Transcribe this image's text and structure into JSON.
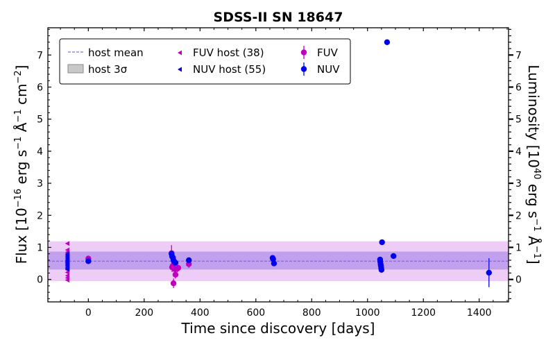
{
  "chart_data": {
    "type": "scatter",
    "title": "SDSS-II SN 18647",
    "xlabel": "Time since discovery [days]",
    "ylabel": {
      "base": "Flux [10",
      "exp1": "−16",
      "mid": " erg s",
      "exp2": "−1",
      "mid2": " Å",
      "exp3": "−1",
      "mid3": " cm",
      "exp4": "−2",
      "end": "]"
    },
    "ylabel_right": {
      "base": "Luminosity [10",
      "exp1": "40",
      "mid": " erg s",
      "exp2": "−1",
      "mid2": " Å",
      "exp3": "−1",
      "end": "]"
    },
    "xlim": [
      -145,
      1505
    ],
    "ylim": [
      -0.7,
      7.85
    ],
    "xticks": [
      0,
      200,
      400,
      600,
      800,
      1000,
      1200,
      1400
    ],
    "yticks": [
      0,
      1,
      2,
      3,
      4,
      5,
      6,
      7
    ],
    "yticks_right": [
      0,
      1,
      2,
      3,
      4,
      5,
      6,
      7
    ],
    "host": {
      "mean": 0.57,
      "nuv_band": [
        0.31,
        0.87
      ],
      "fuv_band": [
        -0.05,
        1.19
      ],
      "line_color": "#8c6bd8",
      "nuv_band_color": "#7050e0",
      "fuv_band_color": "#d68ee8"
    },
    "colors": {
      "fuv": "#c000c0",
      "nuv": "#0000ee"
    },
    "legend": {
      "position": "top-left",
      "entries": [
        {
          "label": "host mean",
          "kind": "dashed"
        },
        {
          "label": "host 3σ",
          "kind": "patch"
        },
        {
          "label": "FUV host (38)",
          "kind": "fuv-host"
        },
        {
          "label": "NUV host (55)",
          "kind": "nuv-host"
        },
        {
          "label": "FUV",
          "kind": "fuv"
        },
        {
          "label": "NUV",
          "kind": "nuv"
        }
      ]
    },
    "series": [
      {
        "name": "FUV host (38)",
        "marker": "triangle-left",
        "color": "#c000c0",
        "x": -75,
        "y": [
          1.12,
          0.92,
          0.85,
          0.78,
          0.72,
          0.66,
          0.6,
          0.55,
          0.5,
          0.44,
          0.38,
          0.3,
          0.22,
          0.12,
          0.05,
          -0.02
        ]
      },
      {
        "name": "NUV host (55)",
        "marker": "triangle-left",
        "color": "#0000ee",
        "x": -75,
        "y": [
          0.8,
          0.75,
          0.7,
          0.66,
          0.62,
          0.58,
          0.55,
          0.52,
          0.48,
          0.45,
          0.42,
          0.38,
          0.35,
          0.32
        ]
      },
      {
        "name": "FUV",
        "marker": "circle",
        "color": "#c000c0",
        "points": [
          {
            "x": 0,
            "y": 0.65,
            "err": 0.08
          },
          {
            "x": 298,
            "y": 0.82,
            "err": 0.25
          },
          {
            "x": 300,
            "y": 0.38,
            "err": 0.15
          },
          {
            "x": 302,
            "y": 0.42,
            "err": 0.12
          },
          {
            "x": 305,
            "y": -0.12,
            "err": 0.15
          },
          {
            "x": 307,
            "y": 0.55,
            "err": 0.12
          },
          {
            "x": 310,
            "y": 0.32,
            "err": 0.15
          },
          {
            "x": 312,
            "y": 0.15,
            "err": 0.12
          },
          {
            "x": 318,
            "y": 0.33,
            "err": 0.1
          },
          {
            "x": 322,
            "y": 0.36,
            "err": 0.1
          },
          {
            "x": 360,
            "y": 0.48,
            "err": 0.12
          }
        ]
      },
      {
        "name": "NUV",
        "marker": "circle",
        "color": "#0000ee",
        "points": [
          {
            "x": 0,
            "y": 0.57,
            "err": 0.06
          },
          {
            "x": 298,
            "y": 0.8,
            "err": 0.08
          },
          {
            "x": 300,
            "y": 0.72,
            "err": 0.07
          },
          {
            "x": 303,
            "y": 0.68,
            "err": 0.07
          },
          {
            "x": 305,
            "y": 0.6,
            "err": 0.06
          },
          {
            "x": 308,
            "y": 0.55,
            "err": 0.06
          },
          {
            "x": 312,
            "y": 0.52,
            "err": 0.06
          },
          {
            "x": 360,
            "y": 0.6,
            "err": 0.06
          },
          {
            "x": 660,
            "y": 0.67,
            "err": 0.05
          },
          {
            "x": 662,
            "y": 0.63,
            "err": 0.05
          },
          {
            "x": 665,
            "y": 0.5,
            "err": 0.05
          },
          {
            "x": 1045,
            "y": 0.62,
            "err": 0.05
          },
          {
            "x": 1046,
            "y": 0.55,
            "err": 0.05
          },
          {
            "x": 1047,
            "y": 0.47,
            "err": 0.05
          },
          {
            "x": 1048,
            "y": 0.42,
            "err": 0.05
          },
          {
            "x": 1049,
            "y": 0.35,
            "err": 0.05
          },
          {
            "x": 1050,
            "y": 0.3,
            "err": 0.05
          },
          {
            "x": 1052,
            "y": 1.16,
            "err": 0.05
          },
          {
            "x": 1070,
            "y": 7.4,
            "err": 0.08
          },
          {
            "x": 1093,
            "y": 0.73,
            "err": 0.05
          },
          {
            "x": 1435,
            "y": 0.21,
            "err": 0.45
          }
        ]
      }
    ]
  }
}
